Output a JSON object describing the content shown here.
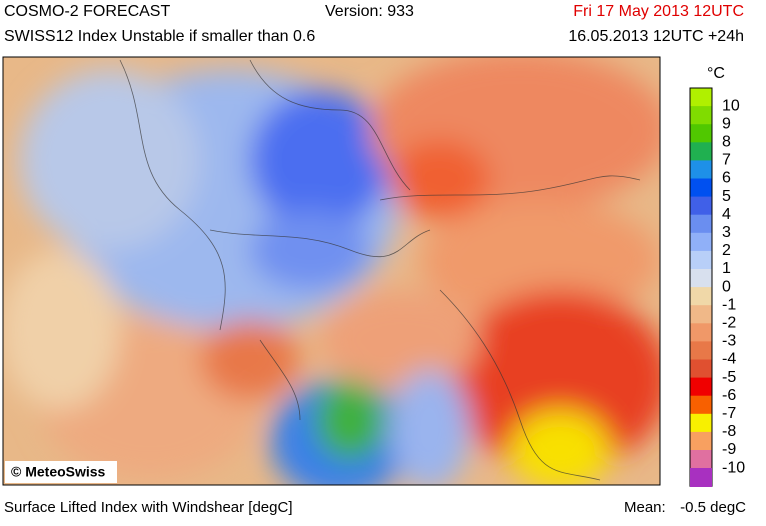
{
  "header": {
    "title": "COSMO-2 FORECAST",
    "version": "Version: 933",
    "valid_time": "Fri 17 May 2013 12UTC",
    "subtitle": "SWISS12 Index Unstable if smaller than 0.6",
    "run": "16.05.2013 12UTC +24h"
  },
  "map": {
    "credit": "© MeteoSwiss"
  },
  "legend": {
    "unit": "°C",
    "items": [
      {
        "value": 10,
        "color": "#b0f000"
      },
      {
        "value": 9,
        "color": "#80dc00"
      },
      {
        "value": 8,
        "color": "#50c800"
      },
      {
        "value": 7,
        "color": "#20b050"
      },
      {
        "value": 6,
        "color": "#1e90e8"
      },
      {
        "value": 5,
        "color": "#0050f0"
      },
      {
        "value": 4,
        "color": "#4060e8"
      },
      {
        "value": 3,
        "color": "#6a8ef0"
      },
      {
        "value": 2,
        "color": "#90b0f8"
      },
      {
        "value": 1,
        "color": "#b8cff8"
      },
      {
        "value": 0,
        "color": "#d8e0ee"
      },
      {
        "value": -1,
        "color": "#f0d8a8"
      },
      {
        "value": -2,
        "color": "#f0b888"
      },
      {
        "value": -3,
        "color": "#f09868"
      },
      {
        "value": -4,
        "color": "#e87848"
      },
      {
        "value": -5,
        "color": "#e05030"
      },
      {
        "value": -6,
        "color": "#f00000"
      },
      {
        "value": -7,
        "color": "#f86000"
      },
      {
        "value": -8,
        "color": "#f8f000"
      },
      {
        "value": -9,
        "color": "#f8a060"
      },
      {
        "value": -10,
        "color": "#e070a0"
      }
    ]
  },
  "footer": {
    "description": "Surface Lifted Index with Windshear [degC]",
    "mean_label": "Mean:",
    "mean_value": "-0.5 degC"
  }
}
